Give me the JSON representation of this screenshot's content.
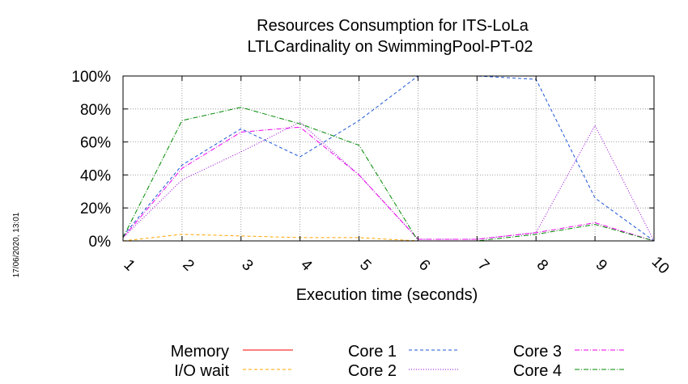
{
  "chart_data": {
    "type": "line",
    "title": [
      "Resources Consumption for ITS-LoLa",
      "LTLCardinality on SwimmingPool-PT-02"
    ],
    "xlabel": "Execution time (seconds)",
    "ylabel": "",
    "x": [
      1,
      2,
      3,
      4,
      5,
      6,
      7,
      8,
      9,
      10
    ],
    "x_tick_labels": [
      "1",
      "2",
      "3",
      "4",
      "5",
      "6",
      "7",
      "8",
      "9",
      "10"
    ],
    "y_tick_labels": [
      "0%",
      "20%",
      "40%",
      "60%",
      "80%",
      "100%"
    ],
    "xlim": [
      1,
      10
    ],
    "ylim": [
      0,
      100
    ],
    "grid": true,
    "legend_position": "bottom",
    "series": [
      {
        "name": "Memory",
        "color": "#ff0000",
        "dash": "solid",
        "values": [
          0,
          0,
          0,
          0,
          0,
          0,
          0,
          0,
          0,
          0
        ]
      },
      {
        "name": "I/O wait",
        "color": "#ffa500",
        "dash": "dashed",
        "values": [
          0,
          4,
          3,
          2,
          2,
          0,
          0,
          0,
          0,
          0
        ]
      },
      {
        "name": "Core 1",
        "color": "#1e56d8",
        "dash": "dashed",
        "values": [
          3,
          46,
          68,
          51,
          73,
          100,
          100,
          98,
          26,
          0
        ]
      },
      {
        "name": "Core 2",
        "color": "#9400d3",
        "dash": "dotted",
        "values": [
          2,
          37,
          54,
          72,
          40,
          1,
          1,
          5,
          70,
          0
        ]
      },
      {
        "name": "Core 3",
        "color": "#ee00ee",
        "dash": "dashdot",
        "values": [
          2,
          44,
          66,
          69,
          40,
          1,
          1,
          5,
          11,
          0
        ]
      },
      {
        "name": "Core 4",
        "color": "#008800",
        "dash": "dashdot",
        "values": [
          2,
          73,
          81,
          71,
          58,
          0,
          0,
          4,
          10,
          0
        ]
      }
    ]
  },
  "date_stamp": "17/06/2020, 13:01"
}
